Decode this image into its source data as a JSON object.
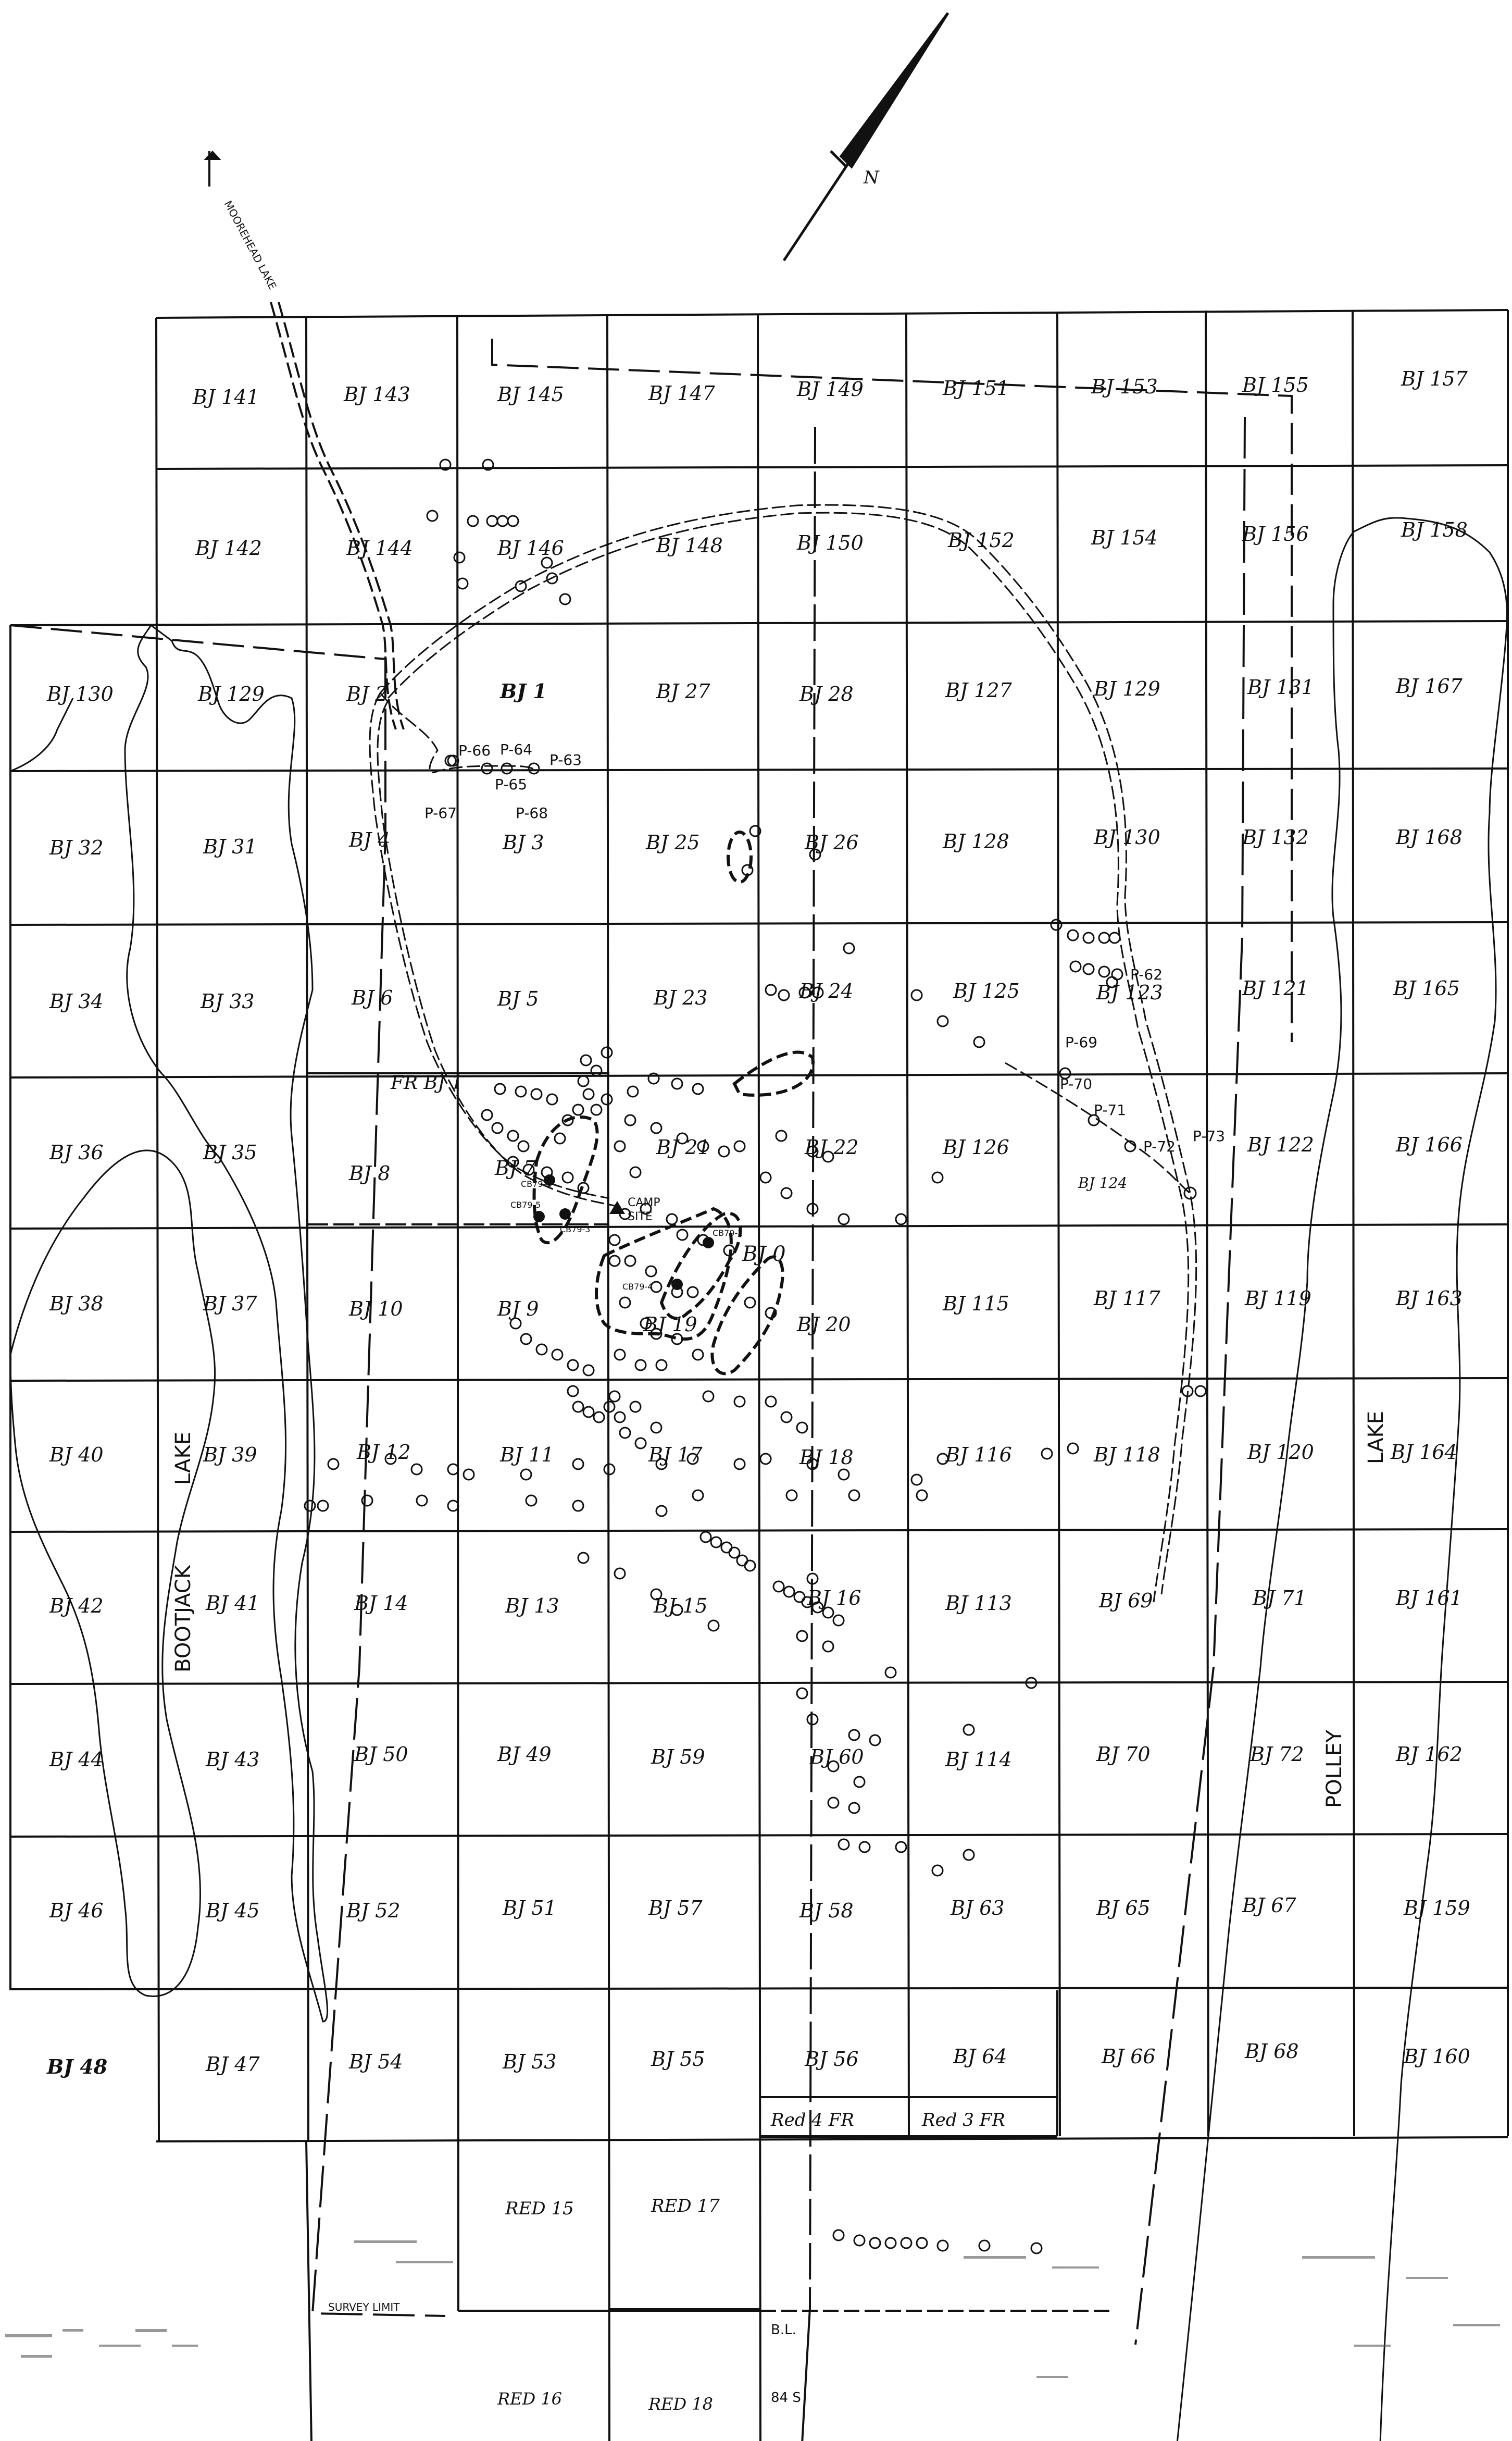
{
  "north_arrow": {
    "label": "N"
  },
  "road_label": "MOOREHEAD LAKE",
  "lakes": {
    "west": [
      "BOOTJACK",
      "LAKE"
    ],
    "east": [
      "POLLEY",
      "LAKE"
    ]
  },
  "claims": [
    [
      "BJ 141",
      "BJ 143",
      "BJ 145",
      "BJ 147",
      "BJ 149",
      "BJ 151",
      "BJ 153",
      "BJ 155",
      "BJ 157"
    ],
    [
      "BJ 142",
      "BJ 144",
      "BJ 146",
      "BJ 148",
      "BJ 150",
      "BJ 152",
      "BJ 154",
      "BJ 156",
      "BJ 158"
    ],
    [
      "BJ 130",
      "BJ 129",
      "BJ 2",
      "BJ 1",
      "BJ 27",
      "BJ 28",
      "BJ 127",
      "BJ 129",
      "BJ 131",
      "BJ 167"
    ],
    [
      "BJ 32",
      "BJ 31",
      "BJ 4",
      "BJ 3",
      "BJ 25",
      "BJ 26",
      "BJ 128",
      "BJ 130",
      "BJ 132",
      "BJ 168"
    ],
    [
      "BJ 34",
      "BJ 33",
      "BJ 6",
      "BJ 5",
      "BJ 23",
      "BJ 24",
      "BJ 125",
      "BJ 123",
      "BJ 121",
      "BJ 165"
    ],
    [
      "BJ 36",
      "BJ 35",
      "BJ 8",
      "BJ 7",
      "BJ 21",
      "BJ 22",
      "BJ 126",
      "BJ 124",
      "BJ 122",
      "BJ 166"
    ],
    [
      "BJ 38",
      "BJ 37",
      "BJ 10",
      "BJ 9",
      "BJ 19",
      "BJ 20",
      "BJ 115",
      "BJ 117",
      "BJ 119",
      "BJ 163"
    ],
    [
      "BJ 40",
      "BJ 39",
      "BJ 12",
      "BJ 11",
      "BJ 17",
      "BJ 18",
      "BJ 116",
      "BJ 118",
      "BJ 120",
      "BJ 164"
    ],
    [
      "BJ 42",
      "BJ 41",
      "BJ 14",
      "BJ 13",
      "BJ 15",
      "BJ 16",
      "BJ 113",
      "BJ 69",
      "BJ 71",
      "BJ 161"
    ],
    [
      "BJ 44",
      "BJ 43",
      "BJ 50",
      "BJ 49",
      "BJ 59",
      "BJ 60",
      "BJ 114",
      "BJ 70",
      "BJ 72",
      "BJ 162"
    ],
    [
      "BJ 46",
      "BJ 45",
      "BJ 52",
      "BJ 51",
      "BJ 57",
      "BJ 58",
      "BJ 63",
      "BJ 65",
      "BJ 67",
      "BJ 159"
    ],
    [
      "BJ 48",
      "BJ 47",
      "BJ 54",
      "BJ 53",
      "BJ 55",
      "BJ 56",
      "BJ 64",
      "BJ 66",
      "BJ 68",
      "BJ 160"
    ]
  ],
  "special_labels": {
    "fr_bj1": "FR BJ 1",
    "bj0": "BJ 0",
    "camp": [
      "CAMP",
      "SITE"
    ],
    "red4": "Red 4 FR",
    "red3": "Red 3 FR",
    "red15": "RED 15",
    "red17": "RED 17",
    "red16": "RED 16",
    "red18": "RED 18",
    "survey_limit": "SURVEY LIMIT",
    "bl": "B.L.",
    "bl_station": "84 S"
  },
  "drill_holes": [
    "P-66",
    "P-64",
    "P-63",
    "P-65",
    "P-67",
    "P-68",
    "P-62",
    "P-69",
    "P-70",
    "P-71",
    "P-72",
    "P-73"
  ],
  "cb_holes": [
    "CB79-1",
    "CB79-2",
    "CB79-3",
    "CB79-4",
    "CB79-5"
  ]
}
